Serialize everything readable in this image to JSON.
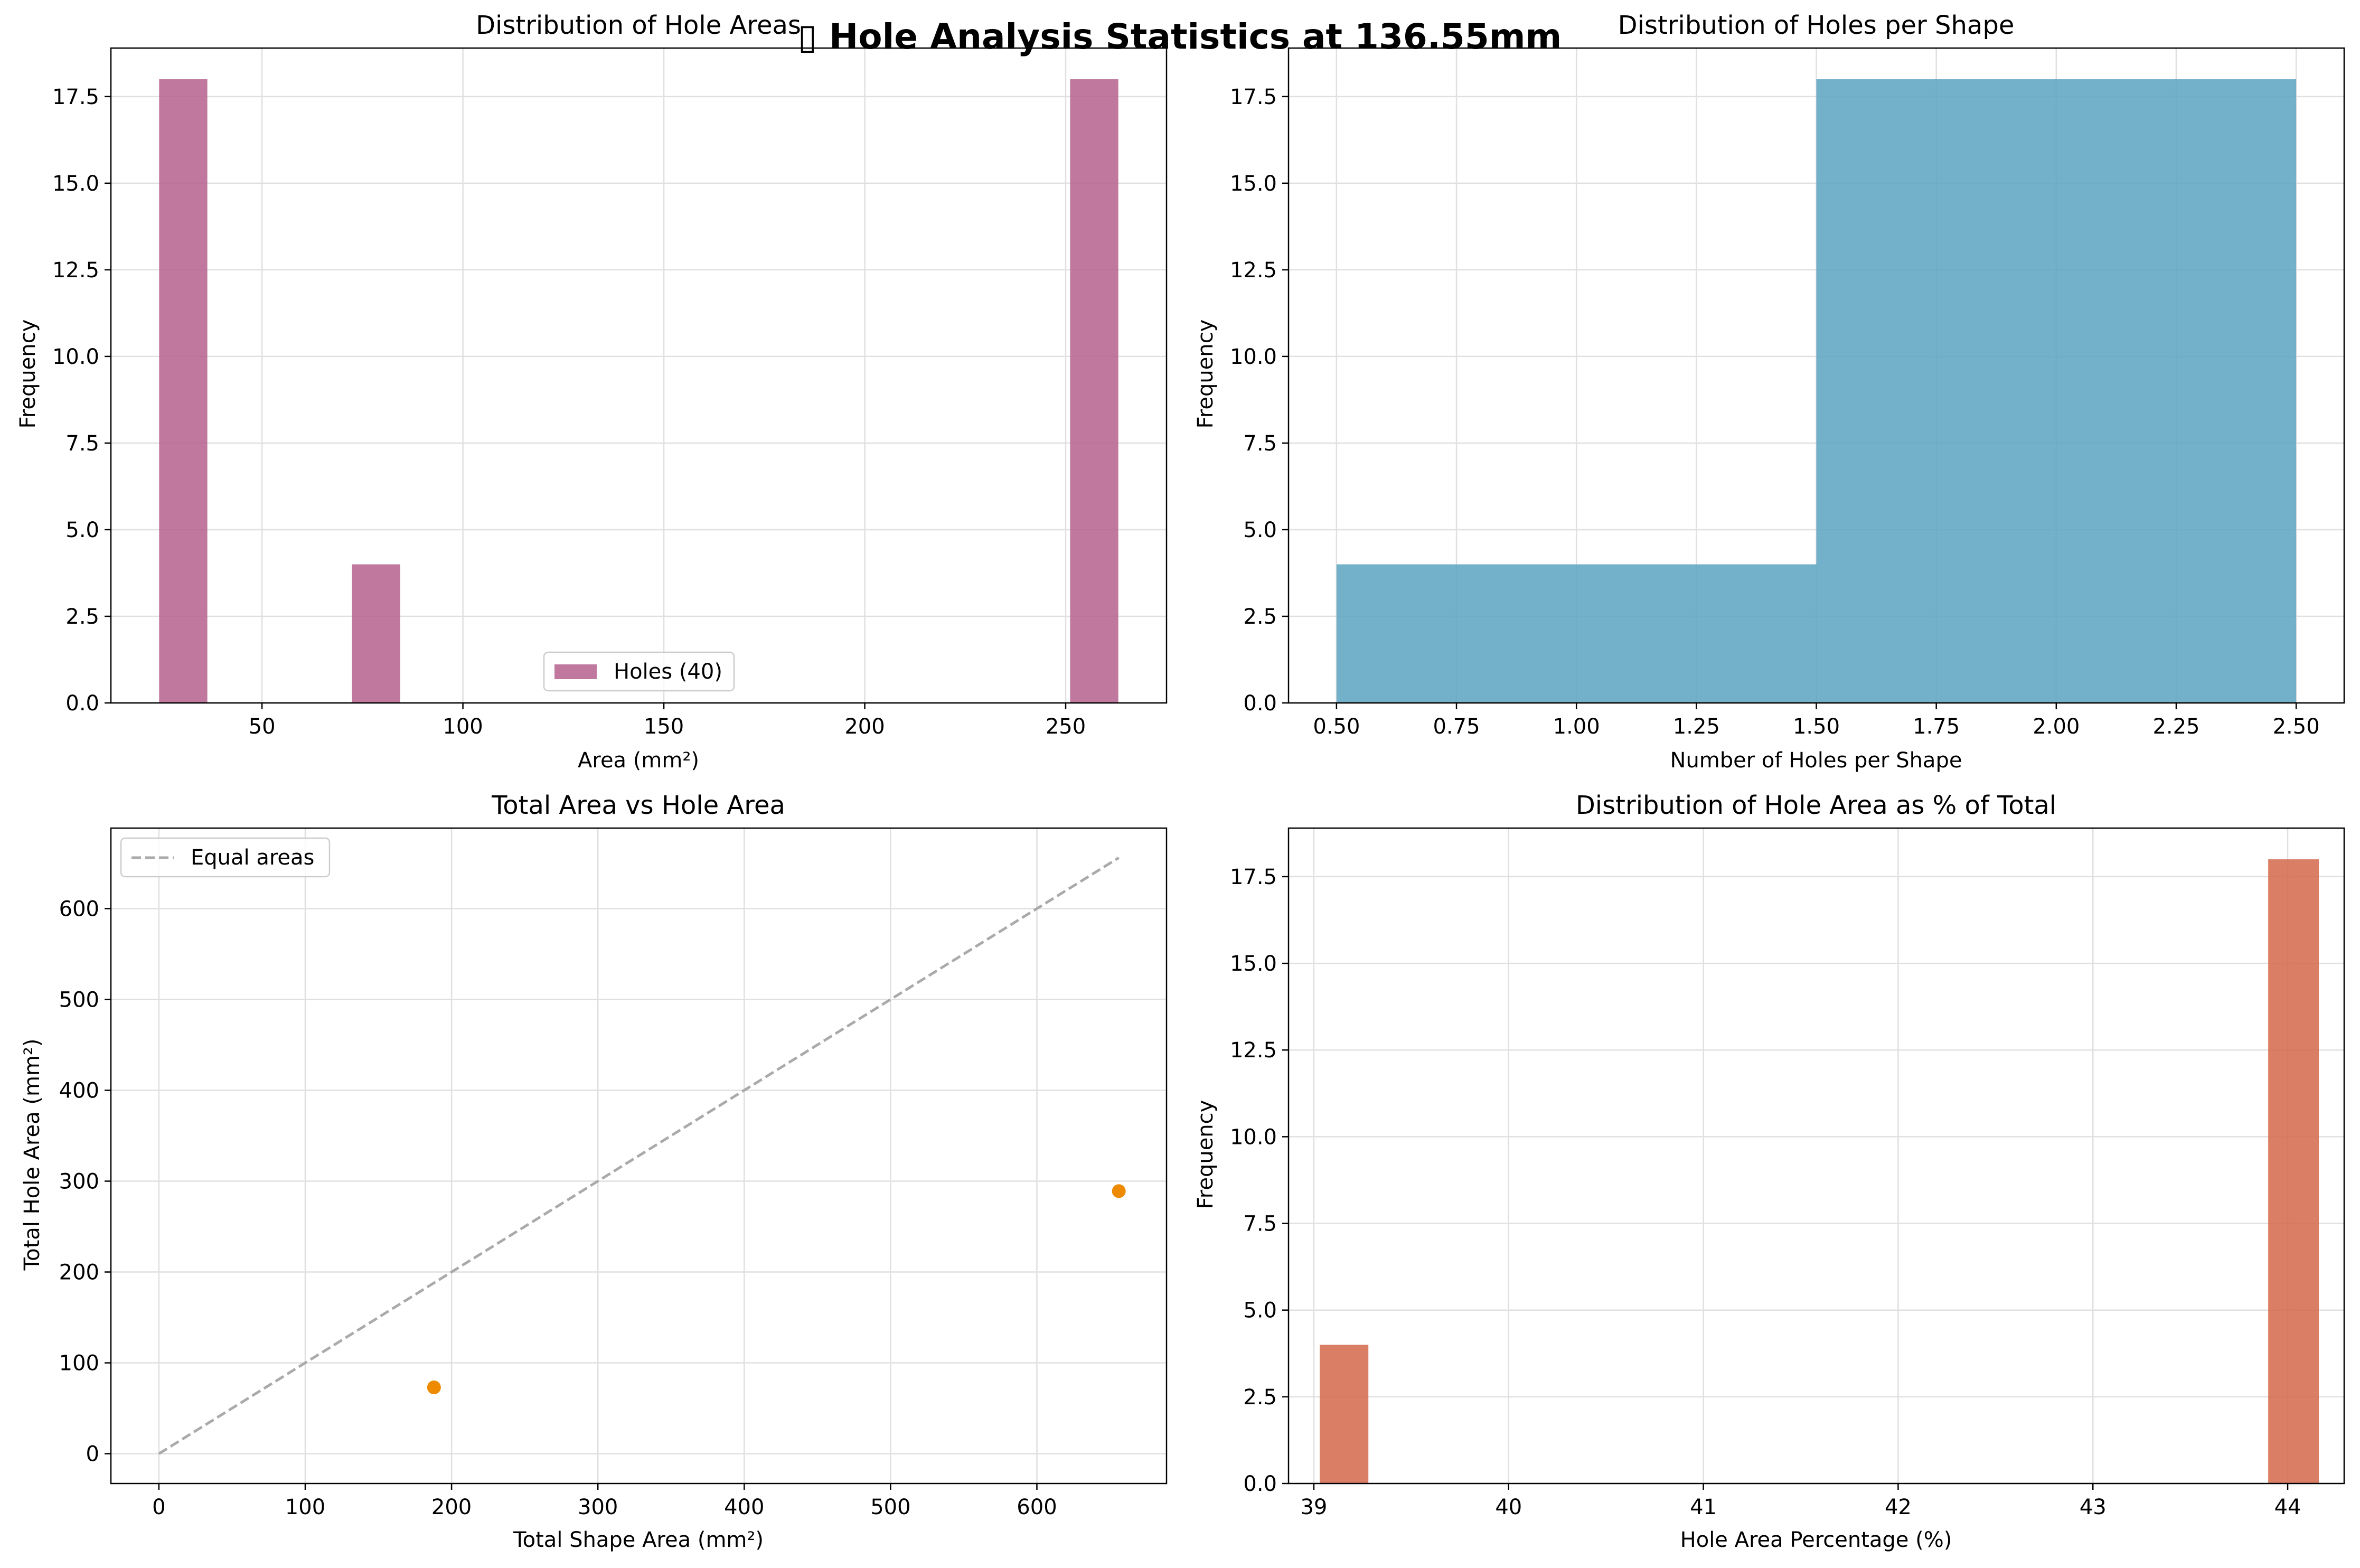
{
  "figure": {
    "suptitle": "▯ Hole Analysis Statistics at 136.55mm"
  },
  "chart_data": [
    {
      "type": "bar",
      "kind": "histogram",
      "title": "Distribution of Hole Areas",
      "xlabel": "Area (mm²)",
      "ylabel": "Frequency",
      "xlim": [
        12.4,
        275.1
      ],
      "ylim": [
        0,
        18.9
      ],
      "xticks": [
        50,
        100,
        150,
        200,
        250
      ],
      "yticks": [
        0.0,
        2.5,
        5.0,
        7.5,
        10.0,
        12.5,
        15.0,
        17.5
      ],
      "ytick_decimals": 1,
      "grid": true,
      "legend": {
        "position": "lower center",
        "entries": [
          "Holes (40)"
        ]
      },
      "series": [
        {
          "name": "Holes (40)",
          "color": "#b5608e",
          "bins": [
            {
              "x0": 24.4,
              "x1": 36.4,
              "count": 18
            },
            {
              "x0": 72.4,
              "x1": 84.4,
              "count": 4
            },
            {
              "x0": 251.1,
              "x1": 263.1,
              "count": 18
            }
          ]
        }
      ]
    },
    {
      "type": "bar",
      "kind": "histogram",
      "title": "Distribution of Holes per Shape",
      "xlabel": "Number of Holes per Shape",
      "ylabel": "Frequency",
      "xlim": [
        0.4,
        2.6
      ],
      "ylim": [
        0,
        18.9
      ],
      "xticks": [
        0.5,
        0.75,
        1.0,
        1.25,
        1.5,
        1.75,
        2.0,
        2.25,
        2.5
      ],
      "xtick_decimals": 2,
      "yticks": [
        0.0,
        2.5,
        5.0,
        7.5,
        10.0,
        12.5,
        15.0,
        17.5
      ],
      "ytick_decimals": 1,
      "grid": true,
      "series": [
        {
          "color": "#5ba2c0",
          "bins": [
            {
              "x0": 0.5,
              "x1": 1.5,
              "count": 4
            },
            {
              "x0": 1.5,
              "x1": 2.5,
              "count": 18
            }
          ]
        }
      ]
    },
    {
      "type": "scatter",
      "title": "Total Area vs Hole Area",
      "xlabel": "Total Shape Area (mm²)",
      "ylabel": "Total Hole Area (mm²)",
      "xlim": [
        -32.8,
        688.6
      ],
      "ylim": [
        -32.8,
        688.6
      ],
      "xticks": [
        0,
        100,
        200,
        300,
        400,
        500,
        600
      ],
      "yticks": [
        0,
        100,
        200,
        300,
        400,
        500,
        600
      ],
      "grid": true,
      "legend": {
        "position": "upper left",
        "entries": [
          "Equal areas"
        ]
      },
      "points": {
        "color": "#ee8a00",
        "data": [
          {
            "x": 188,
            "y": 73
          },
          {
            "x": 656,
            "y": 289
          }
        ]
      },
      "line": {
        "name": "Equal areas",
        "color": "#aaaaaa",
        "style": "dashed",
        "from": [
          0,
          0
        ],
        "to": [
          656,
          656
        ]
      }
    },
    {
      "type": "bar",
      "kind": "histogram",
      "title": "Distribution of Hole Area as % of Total",
      "xlabel": "Hole Area Percentage (%)",
      "ylabel": "Frequency",
      "xlim": [
        38.87,
        44.29
      ],
      "ylim": [
        0,
        18.9
      ],
      "xticks": [
        39,
        40,
        41,
        42,
        43,
        44
      ],
      "yticks": [
        0.0,
        2.5,
        5.0,
        7.5,
        10.0,
        12.5,
        15.0,
        17.5
      ],
      "ytick_decimals": 1,
      "grid": true,
      "series": [
        {
          "color": "#d3694b",
          "bins": [
            {
              "x0": 39.03,
              "x1": 39.28,
              "count": 4
            },
            {
              "x0": 43.9,
              "x1": 44.16,
              "count": 18
            }
          ]
        }
      ]
    }
  ]
}
